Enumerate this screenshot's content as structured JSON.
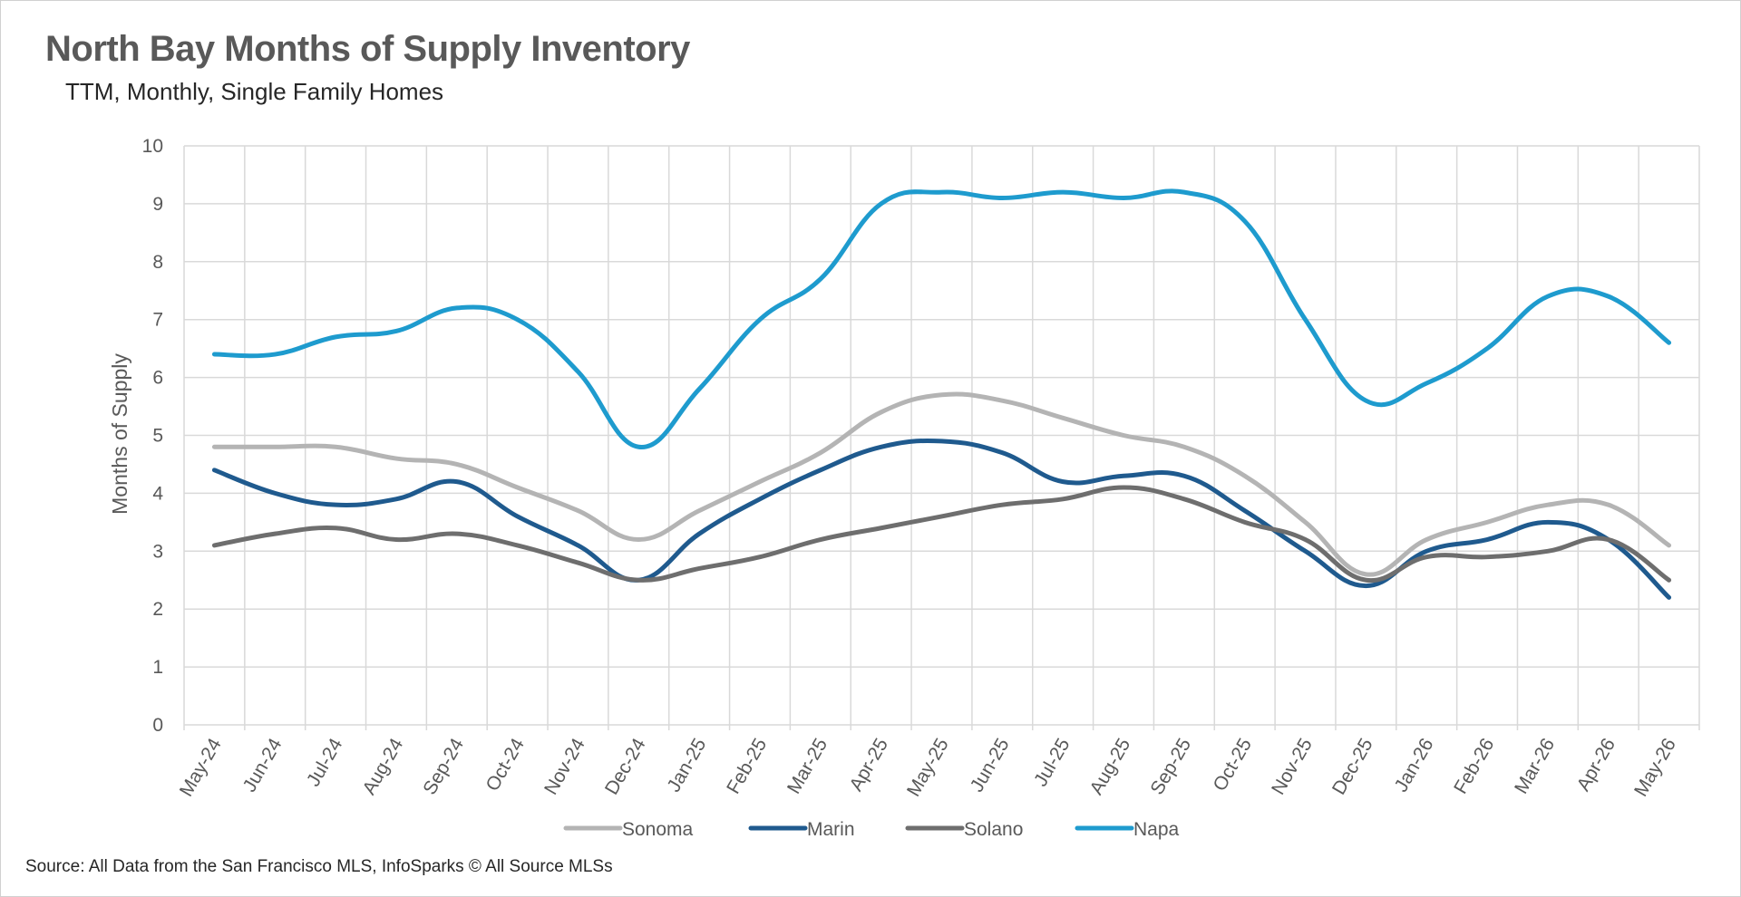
{
  "header": {
    "title": "North Bay Months of Supply Inventory",
    "subtitle": "TTM, Monthly, Single Family Homes"
  },
  "footer": {
    "source": "Source: All Data from the San Francisco MLS, InfoSparks © All Source MLSs"
  },
  "colors": {
    "Sonoma": "#b4b4b4",
    "Marin": "#1f5a8e",
    "Solano": "#6e6e6e",
    "Napa": "#1e9bce",
    "grid": "#d9d9d9"
  },
  "chart_data": {
    "type": "line",
    "title": "North Bay Months of Supply Inventory",
    "subtitle": "TTM, Monthly, Single Family Homes",
    "xlabel": "",
    "ylabel": "Months of Supply",
    "ylim": [
      0,
      10
    ],
    "yticks": [
      0,
      1,
      2,
      3,
      4,
      5,
      6,
      7,
      8,
      9,
      10
    ],
    "grid": true,
    "legend": "bottom",
    "categories": [
      "May-24",
      "Jun-24",
      "Jul-24",
      "Aug-24",
      "Sep-24",
      "Oct-24",
      "Nov-24",
      "Dec-24",
      "Jan-25",
      "Feb-25",
      "Mar-25",
      "Apr-25",
      "May-25",
      "Jun-25",
      "Jul-25",
      "Aug-25",
      "Sep-25",
      "Oct-25",
      "Nov-25",
      "Dec-25",
      "Jan-26",
      "Feb-26",
      "Mar-26",
      "Apr-26",
      "May-26"
    ],
    "series": [
      {
        "name": "Sonoma",
        "values": [
          4.8,
          4.8,
          4.8,
          4.6,
          4.5,
          4.1,
          3.7,
          3.2,
          3.7,
          4.2,
          4.7,
          5.4,
          5.7,
          5.6,
          5.3,
          5.0,
          4.8,
          4.3,
          3.5,
          2.6,
          3.2,
          3.5,
          3.8,
          3.8,
          3.1
        ]
      },
      {
        "name": "Marin",
        "values": [
          4.4,
          4.0,
          3.8,
          3.9,
          4.2,
          3.6,
          3.1,
          2.5,
          3.3,
          3.9,
          4.4,
          4.8,
          4.9,
          4.7,
          4.2,
          4.3,
          4.3,
          3.7,
          3.0,
          2.4,
          3.0,
          3.2,
          3.5,
          3.2,
          2.2
        ]
      },
      {
        "name": "Solano",
        "values": [
          3.1,
          3.3,
          3.4,
          3.2,
          3.3,
          3.1,
          2.8,
          2.5,
          2.7,
          2.9,
          3.2,
          3.4,
          3.6,
          3.8,
          3.9,
          4.1,
          3.9,
          3.5,
          3.2,
          2.5,
          2.9,
          2.9,
          3.0,
          3.2,
          2.5
        ]
      },
      {
        "name": "Napa",
        "values": [
          6.4,
          6.4,
          6.7,
          6.8,
          7.2,
          7.0,
          6.1,
          4.8,
          5.8,
          7.0,
          7.7,
          9.0,
          9.2,
          9.1,
          9.2,
          9.1,
          9.2,
          8.7,
          7.0,
          5.6,
          5.9,
          6.5,
          7.4,
          7.4,
          6.6
        ]
      }
    ]
  }
}
